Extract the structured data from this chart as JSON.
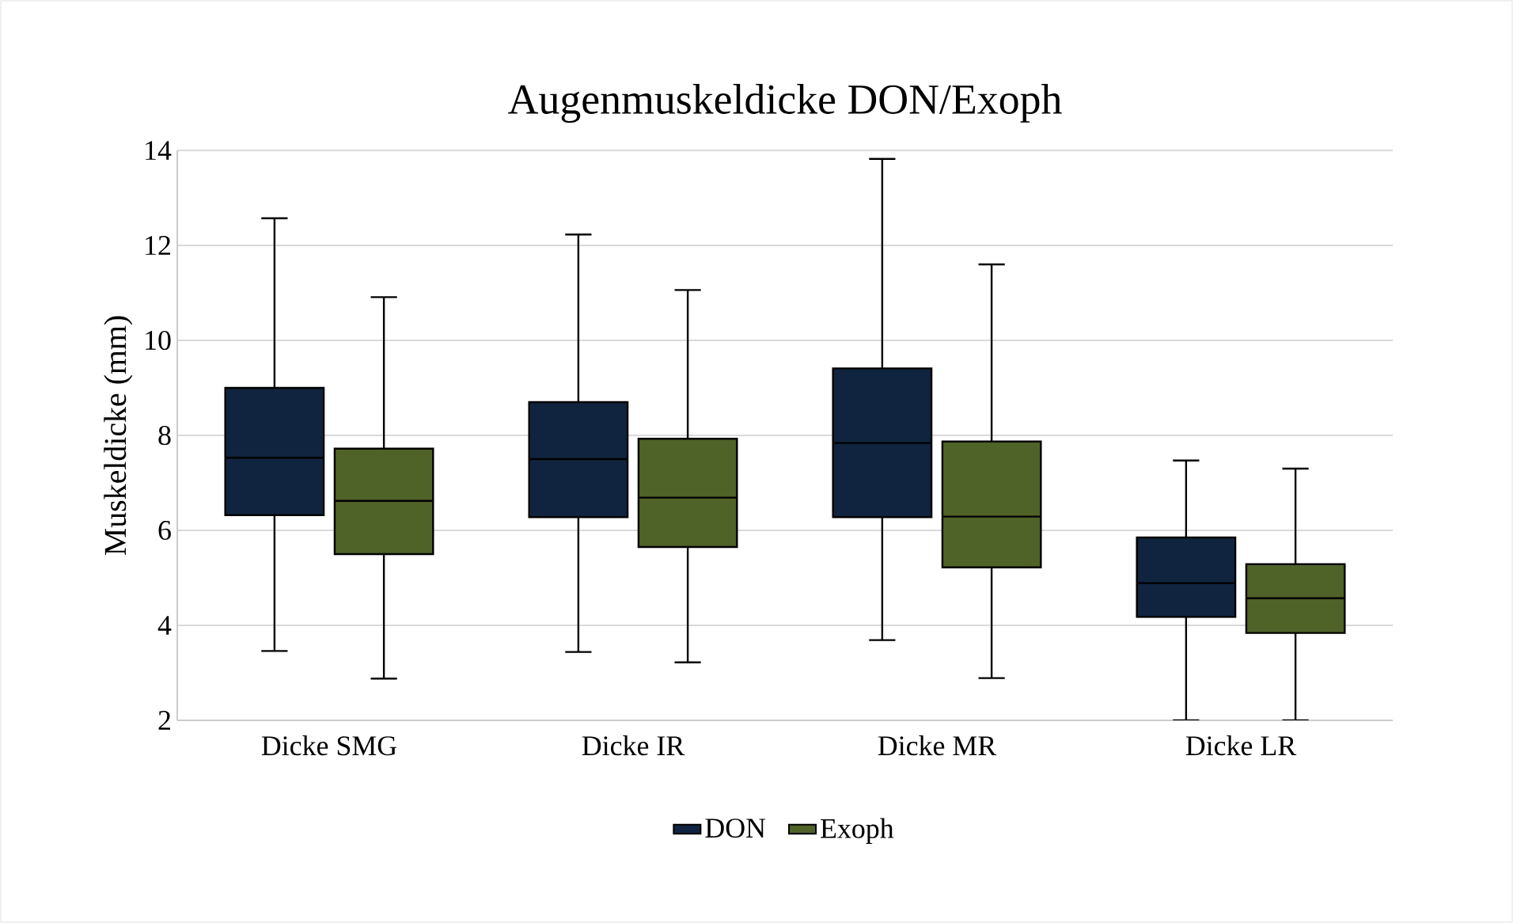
{
  "chart_data": {
    "type": "box",
    "title": "Augenmuskeldicke DON/Exoph",
    "ylabel": "Muskeldicke (mm)",
    "categories": [
      "Dicke SMG",
      "Dicke IR",
      "Dicke MR",
      "Dicke LR"
    ],
    "series": [
      {
        "name": "DON",
        "color": "#10243f",
        "boxes": [
          {
            "low": 3.46,
            "q1": 6.32,
            "median": 7.53,
            "q3": 9.0,
            "high": 12.57
          },
          {
            "low": 3.44,
            "q1": 6.28,
            "median": 7.5,
            "q3": 8.7,
            "high": 12.23
          },
          {
            "low": 3.69,
            "q1": 6.28,
            "median": 7.84,
            "q3": 9.41,
            "high": 13.82
          },
          {
            "low": 2.0,
            "q1": 4.18,
            "median": 4.89,
            "q3": 5.85,
            "high": 7.47
          }
        ]
      },
      {
        "name": "Exoph",
        "color": "#4f6228",
        "boxes": [
          {
            "low": 2.88,
            "q1": 5.5,
            "median": 6.62,
            "q3": 7.72,
            "high": 10.91
          },
          {
            "low": 3.22,
            "q1": 5.65,
            "median": 6.69,
            "q3": 7.93,
            "high": 11.06
          },
          {
            "low": 2.89,
            "q1": 5.22,
            "median": 6.29,
            "q3": 7.87,
            "high": 11.6
          },
          {
            "low": 2.0,
            "q1": 3.84,
            "median": 4.57,
            "q3": 5.29,
            "high": 7.3
          }
        ]
      }
    ],
    "ylim": [
      2,
      14
    ],
    "yticks": [
      2,
      4,
      6,
      8,
      10,
      12,
      14
    ],
    "grid": "y",
    "legend": "bottom"
  }
}
